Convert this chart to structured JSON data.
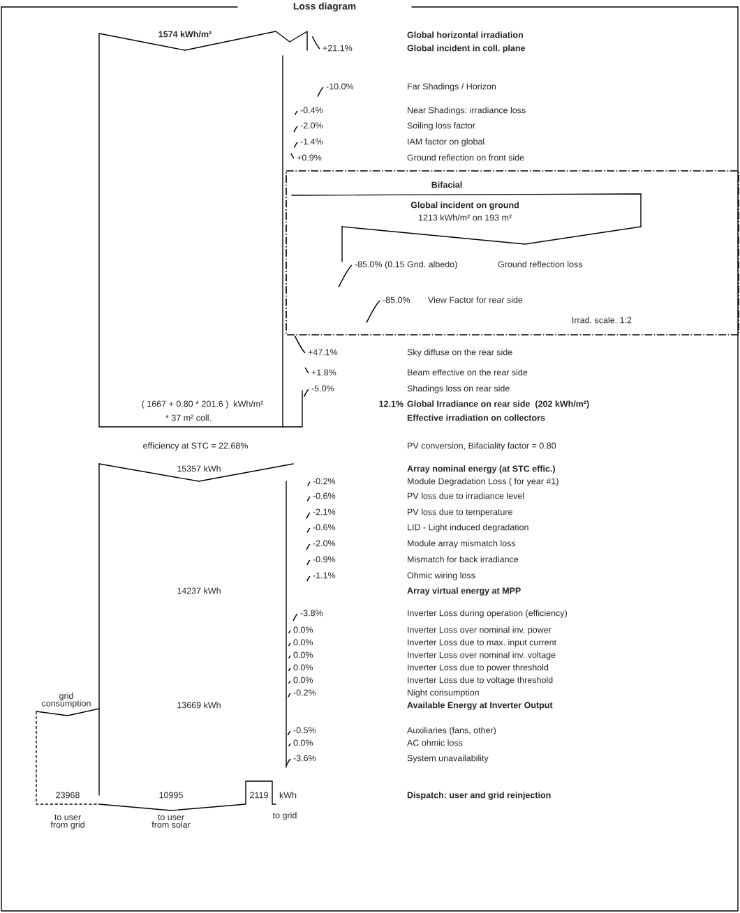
{
  "chart_data": {
    "type": "other",
    "title": "Loss diagram",
    "categories": [
      "Global horizontal irradiation",
      "Global incident in coll. plane",
      "Far Shadings / Horizon",
      "Near Shadings: irradiance loss",
      "Soiling loss factor",
      "IAM factor on global",
      "Ground reflection on front side",
      "Ground reflection loss",
      "View Factor for rear side",
      "Sky diffuse on the rear side",
      "Beam effective on the rear side",
      "Shadings loss on rear side",
      "Global Irradiance on rear side  (202 kWh/m²)",
      "Effective irradiation on collectors",
      "PV conversion, Bifaciality factor = 0.80",
      "Array nominal energy (at STC effic.)",
      "Module Degradation Loss ( for year #1)",
      "PV loss due to irradiance level",
      "PV loss due to temperature",
      "LID - Light induced degradation",
      "Module array mismatch loss",
      "Mismatch for back irradiance",
      "Ohmic wiring loss",
      "Array virtual energy at MPP",
      "Inverter Loss during operation (efficiency)",
      "Inverter Loss over nominal inv. power",
      "Inverter Loss due to max. input current",
      "Inverter Loss over nominal inv. voltage",
      "Inverter Loss due to power threshold",
      "Inverter Loss due to voltage threshold",
      "Night consumption",
      "Available Energy at Inverter Output",
      "Auxiliaries (fans, other)",
      "AC ohmic loss",
      "System unavailability",
      "Dispatch: user and grid reinjection"
    ],
    "values": [
      null,
      21.1,
      -10.0,
      -0.4,
      -2.0,
      -1.4,
      0.9,
      -85.0,
      -85.0,
      47.1,
      1.8,
      -5.0,
      12.1,
      null,
      null,
      null,
      -0.2,
      -0.6,
      -2.1,
      -0.6,
      -2.0,
      -0.9,
      -1.1,
      null,
      -3.8,
      0.0,
      0.0,
      0.0,
      0.0,
      0.0,
      -0.2,
      null,
      -0.5,
      0.0,
      -3.6,
      null
    ],
    "value_labels": [
      null,
      "+21.1%",
      "-10.0%",
      "-0.4%",
      "-2.0%",
      "-1.4%",
      "+0.9%",
      "-85.0% (0.15 Gnd. albedo)",
      "-85.0%",
      "+47.1%",
      "+1.8%",
      "-5.0%",
      "12.1%",
      null,
      null,
      null,
      "-0.2%",
      "-0.6%",
      "-2.1%",
      "-0.6%",
      "-2.0%",
      "-0.9%",
      "-1.1%",
      null,
      "-3.8%",
      "0.0%",
      "0.0%",
      "0.0%",
      "0.0%",
      "0.0%",
      "-0.2%",
      null,
      "-0.5%",
      "0.0%",
      "-3.6%",
      null
    ],
    "annotations": [
      "1574 kWh/m²",
      "Bifacial",
      "Global incident on ground",
      "1213 kWh/m² on 193 m²",
      "Irrad. scale. 1:2",
      "( 1667 + 0.80 * 201.6 )  kWh/m²",
      "* 37 m² coll.",
      "efficiency at STC = 22.68%",
      "15357 kWh",
      "14237 kWh",
      "13669 kWh",
      "grid\nconsumption",
      "23968",
      "10995",
      "2119",
      "kWh",
      "to user\nfrom grid",
      "to user\nfrom solar",
      "to grid"
    ]
  }
}
